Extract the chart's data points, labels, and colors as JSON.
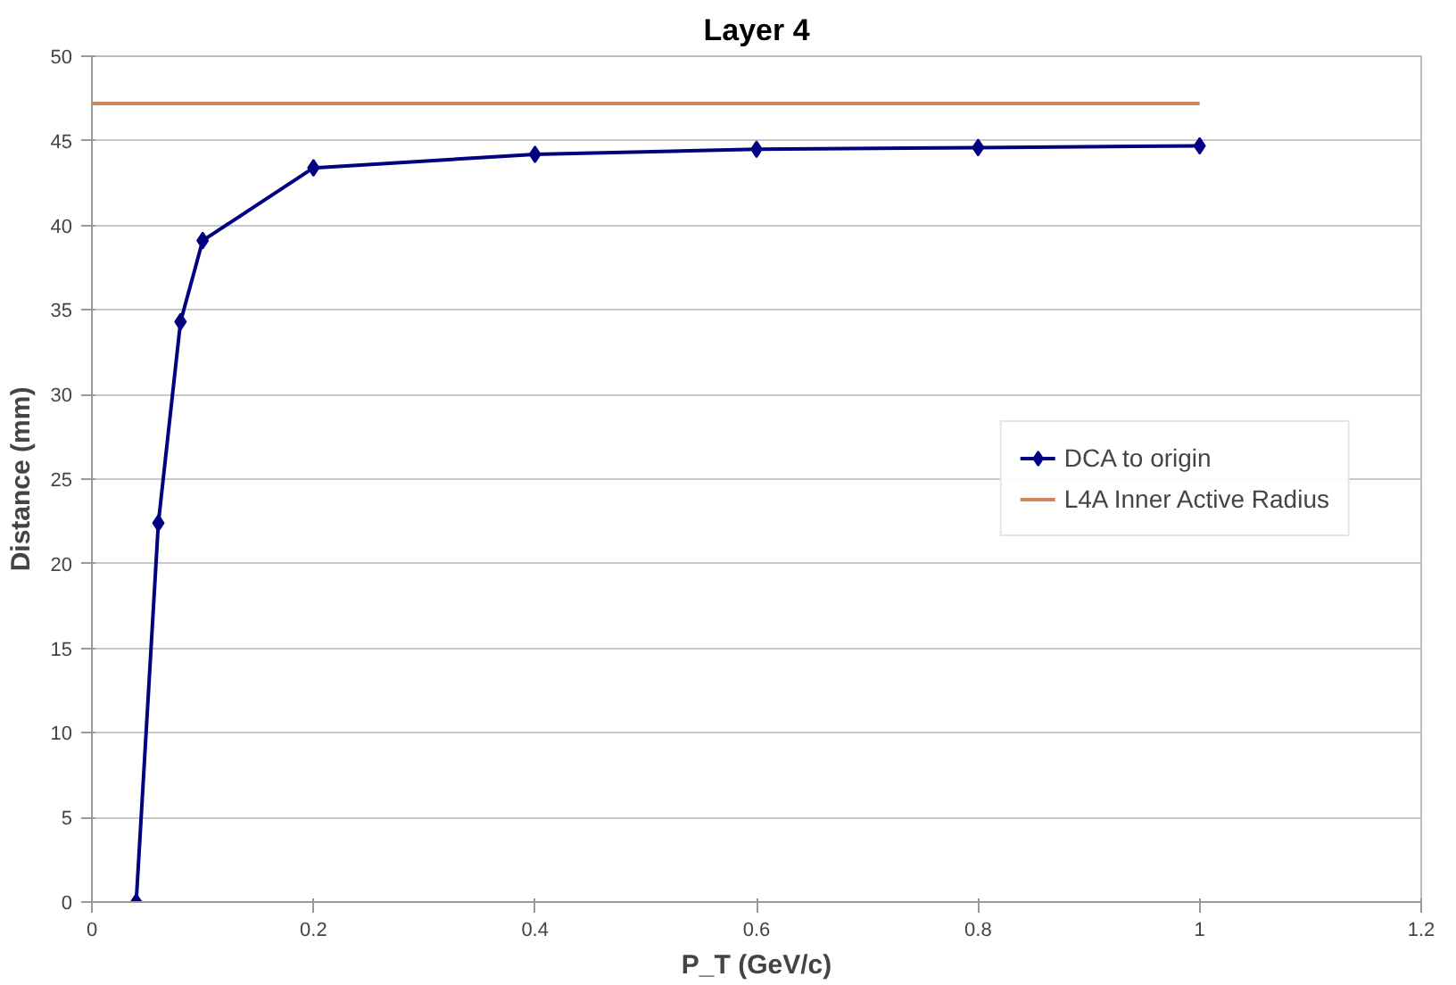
{
  "chart_data": {
    "type": "line",
    "title": "Layer 4",
    "xlabel": "P_T (GeV/c)",
    "ylabel": "Distance (mm)",
    "xlim": [
      0,
      1.2
    ],
    "xticks": [
      0,
      0.2,
      0.4,
      0.6,
      0.8,
      1,
      1.2
    ],
    "ylim": [
      0,
      50
    ],
    "yticks": [
      0,
      5,
      10,
      15,
      20,
      25,
      30,
      35,
      40,
      45,
      50
    ],
    "grid": "y",
    "legend": "right",
    "series": [
      {
        "name": "DCA to origin",
        "color": "#000080",
        "marker": "diamond",
        "x": [
          0.04,
          0.06,
          0.08,
          0.1,
          0.2,
          0.4,
          0.6,
          0.8,
          1
        ],
        "values": [
          0,
          22.4,
          34.3,
          39.1,
          43.4,
          44.2,
          44.5,
          44.6,
          44.7
        ]
      },
      {
        "name": "L4A Inner Active Radius",
        "color": "#d2845a",
        "marker": "none",
        "x": [
          0,
          1
        ],
        "values": [
          47.2,
          47.2
        ]
      }
    ]
  }
}
